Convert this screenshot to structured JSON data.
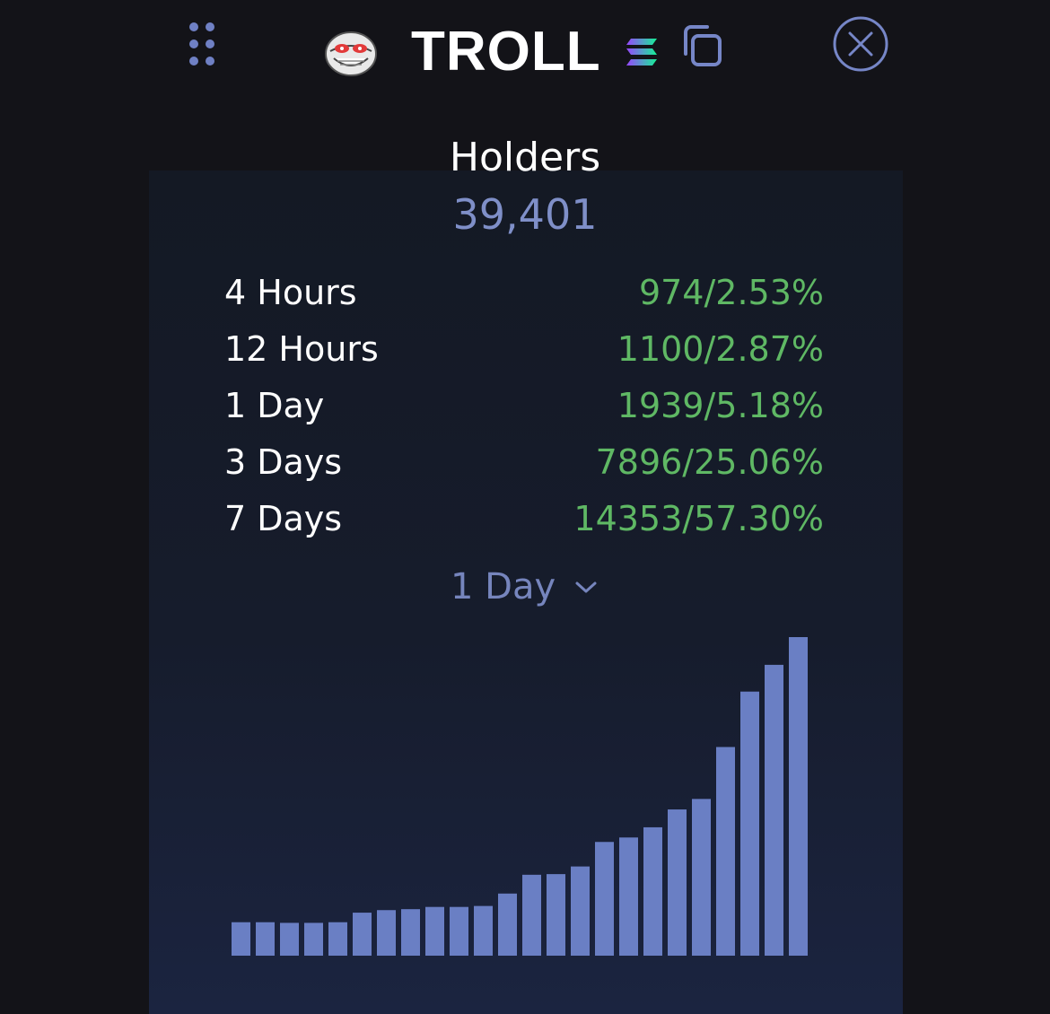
{
  "header": {
    "token_name": "TROLL",
    "token_logo_icon": "troll-face-icon",
    "chain_icon": "solana-icon",
    "drag_icon": "drag-handle-icon",
    "copy_icon": "copy-icon",
    "close_icon": "close-icon"
  },
  "holders": {
    "label": "Holders",
    "count": "39,401"
  },
  "stats": [
    {
      "period": "4 Hours",
      "value": "974/2.53%"
    },
    {
      "period": "12 Hours",
      "value": "1100/2.87%"
    },
    {
      "period": "1 Day",
      "value": "1939/5.18%"
    },
    {
      "period": "3 Days",
      "value": "7896/25.06%"
    },
    {
      "period": "7 Days",
      "value": "14353/57.30%"
    }
  ],
  "range_selector": {
    "selected": "1 Day"
  },
  "colors": {
    "background": "#131318",
    "accent": "#7f8fc8",
    "positive": "#5fb864",
    "bar": "#6a7fc4"
  },
  "chart_data": {
    "type": "bar",
    "title": "",
    "xlabel": "",
    "ylabel": "",
    "grid": false,
    "values": [
      10.5,
      10.5,
      10.3,
      10.3,
      10.5,
      13.5,
      14.3,
      14.6,
      15.3,
      15.3,
      15.6,
      19.5,
      25.4,
      25.6,
      28.0,
      35.7,
      37.1,
      40.3,
      45.9,
      49.2,
      65.5,
      82.9,
      91.3,
      100.0
    ],
    "ylim": [
      0,
      100
    ]
  }
}
